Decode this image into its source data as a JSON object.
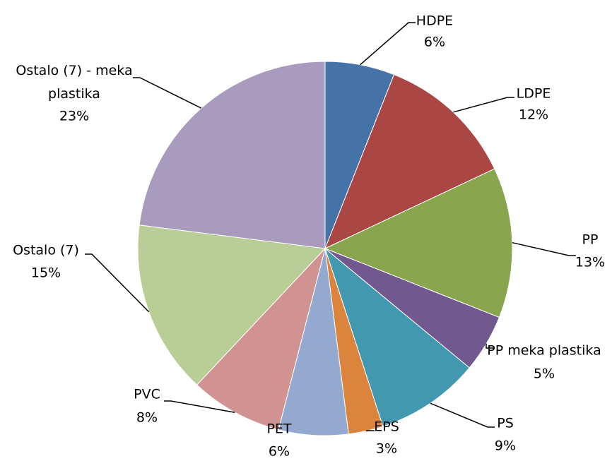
{
  "chart_data": {
    "type": "pie",
    "categories": [
      "HDPE",
      "LDPE",
      "PP",
      "PP meka plastika",
      "PS",
      "EPS",
      "PET",
      "PVC",
      "Ostalo (7)",
      "Ostalo (7) - meka plastika"
    ],
    "values": [
      6,
      12,
      13,
      5,
      9,
      3,
      6,
      8,
      15,
      23
    ],
    "value_labels": [
      "6%",
      "12%",
      "13%",
      "5%",
      "9%",
      "3%",
      "6%",
      "8%",
      "15%",
      "23%"
    ],
    "colors": [
      "#4572a7",
      "#aa4643",
      "#89a54e",
      "#71588f",
      "#4198af",
      "#db843d",
      "#93a9cf",
      "#d19392",
      "#b9cd96",
      "#a99bbd"
    ]
  }
}
